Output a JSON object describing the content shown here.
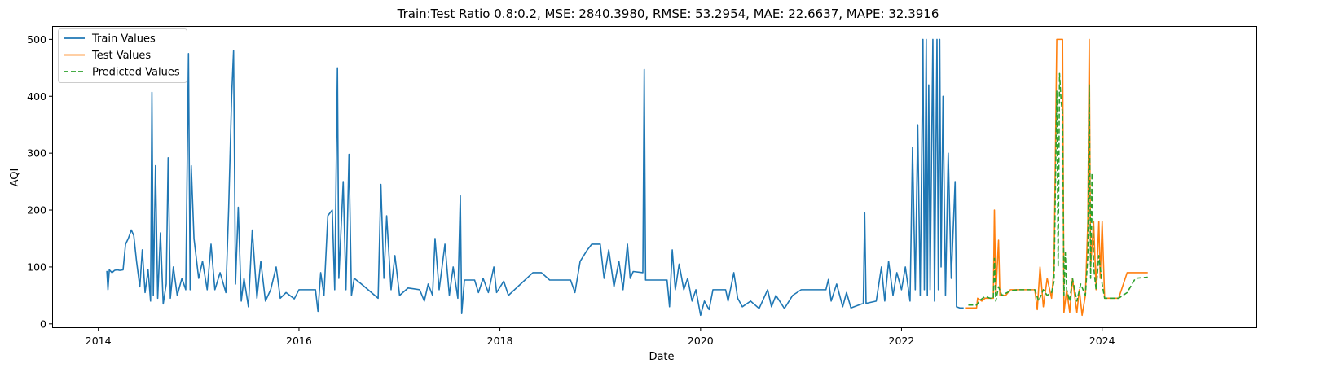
{
  "chart_data": {
    "type": "line",
    "title": "Train:Test Ratio 0.8:0.2, MSE: 2840.3980, RMSE: 53.2954, MAE: 22.6637, MAPE: 32.3916",
    "xlabel": "Date",
    "ylabel": "AQI",
    "xlim": [
      "2013-07-20",
      "2025-07-15"
    ],
    "ylim": [
      -6,
      522
    ],
    "x_ticks": [
      "2014",
      "2016",
      "2018",
      "2020",
      "2022",
      "2024"
    ],
    "y_ticks": [
      0,
      100,
      200,
      300,
      400,
      500
    ],
    "grid": false,
    "legend": "top-left",
    "series": [
      {
        "name": "Train Values",
        "color": "#1f77b4",
        "dash": "solid",
        "points": [
          [
            "2014-02-01",
            93
          ],
          [
            "2014-02-05",
            60
          ],
          [
            "2014-02-10",
            95
          ],
          [
            "2014-02-20",
            90
          ],
          [
            "2014-03-01",
            94
          ],
          [
            "2014-03-10",
            95
          ],
          [
            "2014-03-20",
            94
          ],
          [
            "2014-04-01",
            95
          ],
          [
            "2014-04-10",
            140
          ],
          [
            "2014-04-20",
            150
          ],
          [
            "2014-05-01",
            165
          ],
          [
            "2014-05-10",
            155
          ],
          [
            "2014-05-20",
            110
          ],
          [
            "2014-06-01",
            65
          ],
          [
            "2014-06-10",
            130
          ],
          [
            "2014-06-20",
            55
          ],
          [
            "2014-07-01",
            95
          ],
          [
            "2014-07-10",
            40
          ],
          [
            "2014-07-15",
            407
          ],
          [
            "2014-07-20",
            50
          ],
          [
            "2014-07-28",
            278
          ],
          [
            "2014-08-05",
            45
          ],
          [
            "2014-08-15",
            160
          ],
          [
            "2014-08-25",
            35
          ],
          [
            "2014-09-05",
            70
          ],
          [
            "2014-09-12",
            292
          ],
          [
            "2014-09-20",
            45
          ],
          [
            "2014-10-01",
            100
          ],
          [
            "2014-10-15",
            50
          ],
          [
            "2014-11-01",
            80
          ],
          [
            "2014-11-15",
            60
          ],
          [
            "2014-11-25",
            475
          ],
          [
            "2014-12-01",
            60
          ],
          [
            "2014-12-05",
            278
          ],
          [
            "2014-12-15",
            150
          ],
          [
            "2015-01-01",
            80
          ],
          [
            "2015-01-15",
            110
          ],
          [
            "2015-02-01",
            60
          ],
          [
            "2015-02-15",
            140
          ],
          [
            "2015-03-01",
            60
          ],
          [
            "2015-03-20",
            90
          ],
          [
            "2015-04-10",
            55
          ],
          [
            "2015-04-20",
            200
          ],
          [
            "2015-05-01",
            400
          ],
          [
            "2015-05-08",
            480
          ],
          [
            "2015-05-15",
            70
          ],
          [
            "2015-05-25",
            205
          ],
          [
            "2015-06-05",
            40
          ],
          [
            "2015-06-15",
            80
          ],
          [
            "2015-07-01",
            30
          ],
          [
            "2015-07-15",
            165
          ],
          [
            "2015-08-01",
            45
          ],
          [
            "2015-08-15",
            110
          ],
          [
            "2015-09-01",
            40
          ],
          [
            "2015-09-20",
            60
          ],
          [
            "2015-10-10",
            100
          ],
          [
            "2015-10-25",
            45
          ],
          [
            "2015-11-15",
            55
          ],
          [
            "2015-12-15",
            44
          ],
          [
            "2016-01-01",
            60
          ],
          [
            "2016-03-01",
            60
          ],
          [
            "2016-03-10",
            22
          ],
          [
            "2016-03-20",
            90
          ],
          [
            "2016-04-01",
            50
          ],
          [
            "2016-04-15",
            190
          ],
          [
            "2016-05-01",
            200
          ],
          [
            "2016-05-10",
            60
          ],
          [
            "2016-05-20",
            450
          ],
          [
            "2016-05-25",
            80
          ],
          [
            "2016-06-10",
            250
          ],
          [
            "2016-06-20",
            60
          ],
          [
            "2016-07-01",
            298
          ],
          [
            "2016-07-10",
            50
          ],
          [
            "2016-07-20",
            80
          ],
          [
            "2016-08-15",
            70
          ],
          [
            "2016-10-15",
            45
          ],
          [
            "2016-10-25",
            245
          ],
          [
            "2016-11-05",
            80
          ],
          [
            "2016-11-15",
            190
          ],
          [
            "2016-12-01",
            60
          ],
          [
            "2016-12-15",
            120
          ],
          [
            "2017-01-01",
            50
          ],
          [
            "2017-02-01",
            63
          ],
          [
            "2017-03-15",
            60
          ],
          [
            "2017-04-01",
            40
          ],
          [
            "2017-04-15",
            70
          ],
          [
            "2017-05-01",
            50
          ],
          [
            "2017-05-10",
            150
          ],
          [
            "2017-05-25",
            60
          ],
          [
            "2017-06-15",
            140
          ],
          [
            "2017-07-01",
            50
          ],
          [
            "2017-07-15",
            100
          ],
          [
            "2017-08-01",
            45
          ],
          [
            "2017-08-10",
            225
          ],
          [
            "2017-08-15",
            18
          ],
          [
            "2017-08-25",
            77
          ],
          [
            "2017-10-01",
            77
          ],
          [
            "2017-10-15",
            55
          ],
          [
            "2017-11-01",
            80
          ],
          [
            "2017-11-20",
            55
          ],
          [
            "2017-12-10",
            100
          ],
          [
            "2017-12-20",
            55
          ],
          [
            "2018-01-15",
            75
          ],
          [
            "2018-02-01",
            50
          ],
          [
            "2018-05-01",
            90
          ],
          [
            "2018-06-01",
            90
          ],
          [
            "2018-07-01",
            77
          ],
          [
            "2018-09-15",
            77
          ],
          [
            "2018-10-01",
            55
          ],
          [
            "2018-10-20",
            110
          ],
          [
            "2018-11-15",
            130
          ],
          [
            "2018-12-01",
            140
          ],
          [
            "2019-01-01",
            140
          ],
          [
            "2019-01-15",
            80
          ],
          [
            "2019-02-01",
            130
          ],
          [
            "2019-02-20",
            65
          ],
          [
            "2019-03-10",
            110
          ],
          [
            "2019-03-25",
            60
          ],
          [
            "2019-04-10",
            140
          ],
          [
            "2019-04-20",
            80
          ],
          [
            "2019-05-01",
            92
          ],
          [
            "2019-06-05",
            90
          ],
          [
            "2019-06-10",
            447
          ],
          [
            "2019-06-15",
            77
          ],
          [
            "2019-09-01",
            77
          ],
          [
            "2019-09-10",
            30
          ],
          [
            "2019-09-20",
            130
          ],
          [
            "2019-10-01",
            60
          ],
          [
            "2019-10-15",
            105
          ],
          [
            "2019-11-01",
            60
          ],
          [
            "2019-11-15",
            80
          ],
          [
            "2019-12-01",
            40
          ],
          [
            "2019-12-15",
            60
          ],
          [
            "2020-01-01",
            15
          ],
          [
            "2020-01-15",
            40
          ],
          [
            "2020-02-01",
            25
          ],
          [
            "2020-02-15",
            60
          ],
          [
            "2020-03-01",
            60
          ],
          [
            "2020-04-01",
            60
          ],
          [
            "2020-04-10",
            40
          ],
          [
            "2020-05-01",
            90
          ],
          [
            "2020-05-15",
            45
          ],
          [
            "2020-06-01",
            30
          ],
          [
            "2020-07-01",
            40
          ],
          [
            "2020-08-01",
            27
          ],
          [
            "2020-09-01",
            60
          ],
          [
            "2020-09-15",
            30
          ],
          [
            "2020-10-01",
            50
          ],
          [
            "2020-11-01",
            27
          ],
          [
            "2020-12-01",
            50
          ],
          [
            "2021-01-01",
            60
          ],
          [
            "2021-03-01",
            60
          ],
          [
            "2021-04-01",
            60
          ],
          [
            "2021-04-10",
            78
          ],
          [
            "2021-04-20",
            40
          ],
          [
            "2021-05-10",
            70
          ],
          [
            "2021-06-01",
            30
          ],
          [
            "2021-06-15",
            55
          ],
          [
            "2021-07-01",
            28
          ],
          [
            "2021-08-15",
            36
          ],
          [
            "2021-08-20",
            195
          ],
          [
            "2021-08-25",
            36
          ],
          [
            "2021-10-01",
            40
          ],
          [
            "2021-10-20",
            100
          ],
          [
            "2021-11-01",
            40
          ],
          [
            "2021-11-15",
            110
          ],
          [
            "2021-12-01",
            50
          ],
          [
            "2021-12-15",
            90
          ],
          [
            "2022-01-01",
            60
          ],
          [
            "2022-01-15",
            100
          ],
          [
            "2022-02-01",
            40
          ],
          [
            "2022-02-10",
            310
          ],
          [
            "2022-02-20",
            60
          ],
          [
            "2022-03-01",
            350
          ],
          [
            "2022-03-10",
            50
          ],
          [
            "2022-03-20",
            500
          ],
          [
            "2022-03-25",
            60
          ],
          [
            "2022-04-01",
            500
          ],
          [
            "2022-04-05",
            50
          ],
          [
            "2022-04-10",
            420
          ],
          [
            "2022-04-15",
            60
          ],
          [
            "2022-04-25",
            500
          ],
          [
            "2022-05-01",
            40
          ],
          [
            "2022-05-10",
            500
          ],
          [
            "2022-05-15",
            60
          ],
          [
            "2022-05-20",
            500
          ],
          [
            "2022-05-25",
            100
          ],
          [
            "2022-06-01",
            400
          ],
          [
            "2022-06-10",
            50
          ],
          [
            "2022-06-20",
            300
          ],
          [
            "2022-07-01",
            80
          ],
          [
            "2022-07-15",
            250
          ],
          [
            "2022-07-20",
            30
          ],
          [
            "2022-08-01",
            28
          ],
          [
            "2022-08-15",
            28
          ]
        ]
      },
      {
        "name": "Test Values",
        "color": "#ff7f0e",
        "dash": "solid",
        "points": [
          [
            "2022-08-20",
            28
          ],
          [
            "2022-10-01",
            28
          ],
          [
            "2022-10-05",
            45
          ],
          [
            "2022-10-20",
            40
          ],
          [
            "2022-11-01",
            45
          ],
          [
            "2022-11-20",
            45
          ],
          [
            "2022-12-01",
            45
          ],
          [
            "2022-12-05",
            200
          ],
          [
            "2022-12-10",
            50
          ],
          [
            "2022-12-20",
            147
          ],
          [
            "2022-12-25",
            50
          ],
          [
            "2023-01-15",
            50
          ],
          [
            "2023-02-01",
            60
          ],
          [
            "2023-03-01",
            60
          ],
          [
            "2023-04-01",
            60
          ],
          [
            "2023-05-01",
            60
          ],
          [
            "2023-05-10",
            25
          ],
          [
            "2023-05-20",
            100
          ],
          [
            "2023-06-01",
            30
          ],
          [
            "2023-06-15",
            80
          ],
          [
            "2023-07-01",
            45
          ],
          [
            "2023-07-10",
            100
          ],
          [
            "2023-07-20",
            500
          ],
          [
            "2023-08-01",
            500
          ],
          [
            "2023-08-10",
            500
          ],
          [
            "2023-08-15",
            20
          ],
          [
            "2023-08-25",
            60
          ],
          [
            "2023-09-05",
            20
          ],
          [
            "2023-09-15",
            80
          ],
          [
            "2023-10-01",
            20
          ],
          [
            "2023-10-10",
            60
          ],
          [
            "2023-10-20",
            15
          ],
          [
            "2023-11-01",
            50
          ],
          [
            "2023-11-10",
            180
          ],
          [
            "2023-11-15",
            500
          ],
          [
            "2023-11-20",
            100
          ],
          [
            "2023-12-01",
            180
          ],
          [
            "2023-12-10",
            60
          ],
          [
            "2023-12-20",
            180
          ],
          [
            "2023-12-25",
            80
          ],
          [
            "2024-01-01",
            180
          ],
          [
            "2024-01-10",
            45
          ],
          [
            "2024-02-01",
            45
          ],
          [
            "2024-03-01",
            45
          ],
          [
            "2024-04-01",
            90
          ],
          [
            "2024-06-15",
            90
          ]
        ]
      },
      {
        "name": "Predicted Values",
        "color": "#2ca02c",
        "dash": "dashed",
        "points": [
          [
            "2022-09-01",
            33
          ],
          [
            "2022-10-01",
            33
          ],
          [
            "2022-10-15",
            42
          ],
          [
            "2022-11-01",
            48
          ],
          [
            "2022-11-20",
            45
          ],
          [
            "2022-12-01",
            45
          ],
          [
            "2022-12-05",
            115
          ],
          [
            "2022-12-10",
            40
          ],
          [
            "2022-12-20",
            65
          ],
          [
            "2023-01-01",
            50
          ],
          [
            "2023-02-01",
            58
          ],
          [
            "2023-03-01",
            60
          ],
          [
            "2023-04-01",
            60
          ],
          [
            "2023-05-01",
            60
          ],
          [
            "2023-05-15",
            40
          ],
          [
            "2023-06-01",
            60
          ],
          [
            "2023-06-15",
            50
          ],
          [
            "2023-07-01",
            55
          ],
          [
            "2023-07-10",
            75
          ],
          [
            "2023-07-20",
            410
          ],
          [
            "2023-07-25",
            100
          ],
          [
            "2023-07-30",
            440
          ],
          [
            "2023-08-05",
            390
          ],
          [
            "2023-08-10",
            370
          ],
          [
            "2023-08-15",
            50
          ],
          [
            "2023-08-20",
            125
          ],
          [
            "2023-08-25",
            60
          ],
          [
            "2023-09-05",
            40
          ],
          [
            "2023-09-15",
            80
          ],
          [
            "2023-10-01",
            40
          ],
          [
            "2023-10-15",
            70
          ],
          [
            "2023-11-01",
            50
          ],
          [
            "2023-11-10",
            120
          ],
          [
            "2023-11-15",
            420
          ],
          [
            "2023-11-20",
            80
          ],
          [
            "2023-11-25",
            265
          ],
          [
            "2023-12-01",
            100
          ],
          [
            "2023-12-10",
            60
          ],
          [
            "2023-12-20",
            120
          ],
          [
            "2024-01-01",
            70
          ],
          [
            "2024-01-10",
            45
          ],
          [
            "2024-02-01",
            45
          ],
          [
            "2024-03-01",
            45
          ],
          [
            "2024-04-01",
            55
          ],
          [
            "2024-05-01",
            80
          ],
          [
            "2024-06-15",
            82
          ]
        ]
      }
    ]
  }
}
